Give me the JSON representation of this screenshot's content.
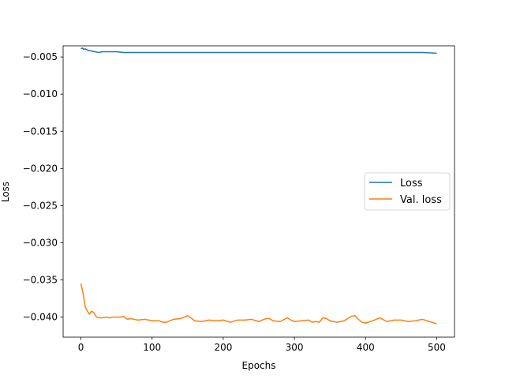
{
  "chart_data": {
    "type": "line",
    "title": "",
    "xlabel": "Epochs",
    "ylabel": "Loss",
    "xlim": [
      -25,
      525
    ],
    "ylim": [
      -0.0427,
      -0.0035
    ],
    "xticks": [
      0,
      100,
      200,
      300,
      400,
      500
    ],
    "xtick_labels": [
      "0",
      "100",
      "200",
      "300",
      "400",
      "500"
    ],
    "yticks": [
      -0.005,
      -0.01,
      -0.015,
      -0.02,
      -0.025,
      -0.03,
      -0.035,
      -0.04
    ],
    "ytick_labels": [
      "−0.005",
      "−0.010",
      "−0.015",
      "−0.020",
      "−0.025",
      "−0.030",
      "−0.035",
      "−0.040"
    ],
    "grid": false,
    "legend_position": "center-right",
    "series": [
      {
        "name": "Loss",
        "color": "#1f77b4",
        "x": [
          0,
          2,
          4,
          6,
          10,
          15,
          20,
          25,
          30,
          40,
          50,
          60,
          70,
          80,
          90,
          100,
          120,
          140,
          160,
          180,
          200,
          220,
          240,
          260,
          280,
          300,
          320,
          340,
          360,
          380,
          400,
          420,
          440,
          460,
          480,
          500
        ],
        "y": [
          -0.0039,
          -0.0038,
          -0.004,
          -0.0039,
          -0.0041,
          -0.0042,
          -0.0043,
          -0.0044,
          -0.0043,
          -0.0043,
          -0.0043,
          -0.0044,
          -0.0044,
          -0.0044,
          -0.0044,
          -0.0044,
          -0.0044,
          -0.0044,
          -0.0044,
          -0.0044,
          -0.0044,
          -0.0044,
          -0.0044,
          -0.0044,
          -0.0044,
          -0.0044,
          -0.0044,
          -0.0044,
          -0.0044,
          -0.0044,
          -0.0044,
          -0.0044,
          -0.0044,
          -0.0044,
          -0.0044,
          -0.0045
        ]
      },
      {
        "name": "Val. loss",
        "color": "#ff7f0e",
        "x": [
          0,
          3,
          6,
          9,
          12,
          15,
          18,
          22,
          26,
          30,
          35,
          40,
          45,
          50,
          55,
          60,
          65,
          70,
          80,
          90,
          100,
          110,
          115,
          120,
          130,
          140,
          150,
          160,
          170,
          180,
          190,
          200,
          210,
          220,
          230,
          240,
          250,
          260,
          265,
          270,
          280,
          290,
          295,
          300,
          310,
          320,
          325,
          330,
          335,
          340,
          345,
          350,
          360,
          370,
          380,
          385,
          390,
          395,
          400,
          410,
          420,
          430,
          440,
          450,
          460,
          470,
          480,
          490,
          500
        ],
        "y": [
          -0.0355,
          -0.0368,
          -0.0386,
          -0.0392,
          -0.0396,
          -0.0392,
          -0.0394,
          -0.04,
          -0.0401,
          -0.0401,
          -0.04,
          -0.0401,
          -0.04,
          -0.04,
          -0.04,
          -0.0399,
          -0.0403,
          -0.0402,
          -0.0404,
          -0.0403,
          -0.0405,
          -0.0405,
          -0.0407,
          -0.0407,
          -0.0403,
          -0.0402,
          -0.0398,
          -0.0405,
          -0.0406,
          -0.0404,
          -0.0405,
          -0.0404,
          -0.0407,
          -0.0404,
          -0.0404,
          -0.0403,
          -0.0406,
          -0.0402,
          -0.0402,
          -0.0405,
          -0.0406,
          -0.0401,
          -0.0404,
          -0.0406,
          -0.0405,
          -0.0404,
          -0.0407,
          -0.0406,
          -0.0407,
          -0.0401,
          -0.0402,
          -0.0405,
          -0.0407,
          -0.0405,
          -0.0399,
          -0.0398,
          -0.0403,
          -0.0407,
          -0.0408,
          -0.0405,
          -0.0401,
          -0.0406,
          -0.0404,
          -0.0404,
          -0.0406,
          -0.0405,
          -0.0403,
          -0.0406,
          -0.0409
        ]
      }
    ]
  }
}
